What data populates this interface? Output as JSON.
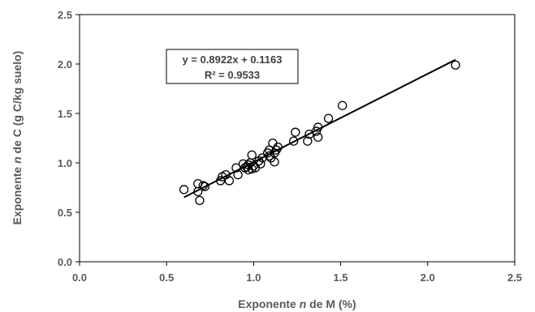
{
  "chart_data": {
    "type": "scatter",
    "xlabel_prefix": "Exponente ",
    "xlabel_var": "n",
    "xlabel_suffix": " de M (%)",
    "ylabel_prefix": "Exponente ",
    "ylabel_var": "n",
    "ylabel_suffix": " de C (g C/kg suelo)",
    "xlim": [
      0.0,
      2.5
    ],
    "ylim": [
      0.0,
      2.5
    ],
    "x_ticks": [
      "0.0",
      "0.5",
      "1.0",
      "1.5",
      "2.0",
      "2.5"
    ],
    "y_ticks": [
      "0.0",
      "0.5",
      "1.0",
      "1.5",
      "2.0",
      "2.5"
    ],
    "grid": false,
    "legend": "none",
    "trendline": {
      "slope": 0.8922,
      "intercept": 0.1163,
      "x_range": [
        0.6,
        2.16
      ],
      "equation": "y = 0.8922x + 0.1163",
      "r2": "R² = 0.9533"
    },
    "points": [
      {
        "x": 0.6,
        "y": 0.73
      },
      {
        "x": 0.68,
        "y": 0.79
      },
      {
        "x": 0.68,
        "y": 0.71
      },
      {
        "x": 0.69,
        "y": 0.62
      },
      {
        "x": 0.71,
        "y": 0.77
      },
      {
        "x": 0.72,
        "y": 0.76
      },
      {
        "x": 0.81,
        "y": 0.82
      },
      {
        "x": 0.82,
        "y": 0.86
      },
      {
        "x": 0.84,
        "y": 0.88
      },
      {
        "x": 0.86,
        "y": 0.82
      },
      {
        "x": 0.9,
        "y": 0.95
      },
      {
        "x": 0.91,
        "y": 0.88
      },
      {
        "x": 0.94,
        "y": 0.99
      },
      {
        "x": 0.95,
        "y": 0.95
      },
      {
        "x": 0.96,
        "y": 0.96
      },
      {
        "x": 0.97,
        "y": 0.93
      },
      {
        "x": 0.97,
        "y": 0.98
      },
      {
        "x": 0.98,
        "y": 1.0
      },
      {
        "x": 0.99,
        "y": 0.94
      },
      {
        "x": 0.99,
        "y": 1.08
      },
      {
        "x": 1.0,
        "y": 0.97
      },
      {
        "x": 1.01,
        "y": 0.95
      },
      {
        "x": 1.03,
        "y": 1.02
      },
      {
        "x": 1.04,
        "y": 0.99
      },
      {
        "x": 1.05,
        "y": 1.05
      },
      {
        "x": 1.08,
        "y": 1.1
      },
      {
        "x": 1.09,
        "y": 1.13
      },
      {
        "x": 1.09,
        "y": 1.07
      },
      {
        "x": 1.1,
        "y": 1.05
      },
      {
        "x": 1.11,
        "y": 1.2
      },
      {
        "x": 1.12,
        "y": 1.1
      },
      {
        "x": 1.12,
        "y": 1.01
      },
      {
        "x": 1.13,
        "y": 1.13
      },
      {
        "x": 1.14,
        "y": 1.16
      },
      {
        "x": 1.23,
        "y": 1.22
      },
      {
        "x": 1.24,
        "y": 1.31
      },
      {
        "x": 1.31,
        "y": 1.22
      },
      {
        "x": 1.32,
        "y": 1.29
      },
      {
        "x": 1.36,
        "y": 1.32
      },
      {
        "x": 1.37,
        "y": 1.36
      },
      {
        "x": 1.37,
        "y": 1.26
      },
      {
        "x": 1.43,
        "y": 1.45
      },
      {
        "x": 1.51,
        "y": 1.58
      },
      {
        "x": 2.16,
        "y": 1.99
      }
    ]
  }
}
